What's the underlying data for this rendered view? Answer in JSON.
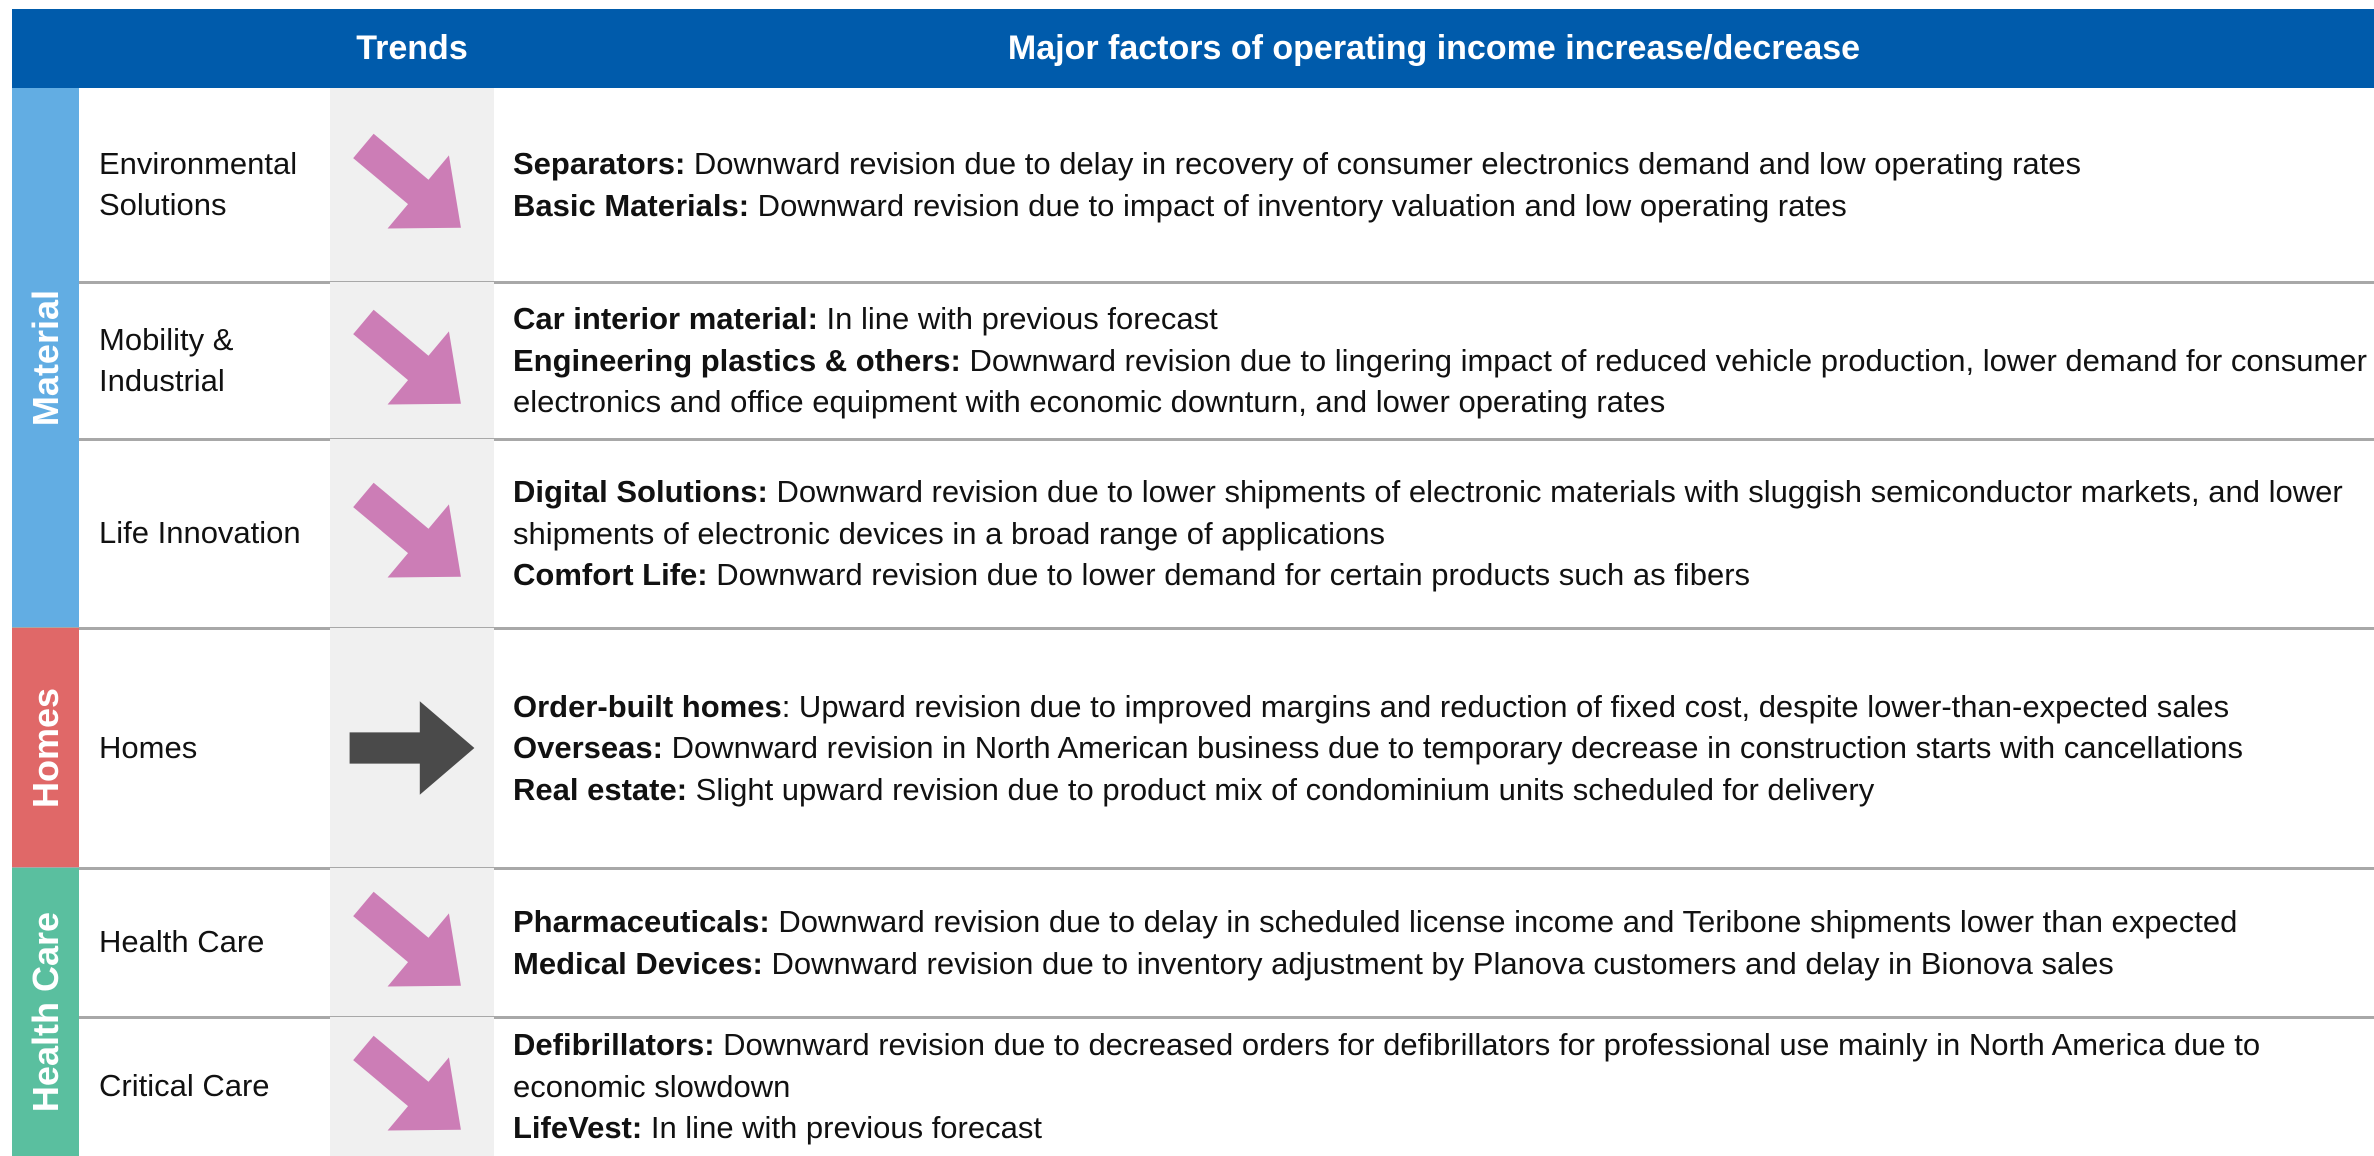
{
  "header": {
    "trends": "Trends",
    "factors": "Major factors of operating income increase/decrease"
  },
  "groups": [
    {
      "name": "Material",
      "color": "#62ade3",
      "rows": [
        {
          "segment": "Environmental Solutions",
          "trend": "down",
          "factors": [
            {
              "label": "Separators:",
              "text": " Downward revision due to delay in recovery of consumer electronics demand and low operating rates"
            },
            {
              "label": "Basic Materials:",
              "text": " Downward revision due to impact of inventory valuation and low operating rates"
            }
          ]
        },
        {
          "segment": "Mobility & Industrial",
          "trend": "down",
          "factors": [
            {
              "label": "Car interior material:",
              "text": " In line with previous forecast"
            },
            {
              "label": "Engineering plastics & others:",
              "text": " Downward revision due to lingering impact of reduced vehicle production, lower demand for consumer electronics and office equipment with economic downturn, and lower operating rates"
            }
          ]
        },
        {
          "segment": "Life Innovation",
          "trend": "down",
          "factors": [
            {
              "label": "Digital Solutions:",
              "text": " Downward revision due to lower shipments of electronic materials with sluggish semiconductor markets, and lower shipments of electronic devices in a broad range of applications"
            },
            {
              "label": "Comfort Life:",
              "text": " Downward revision due to lower demand for certain products such as fibers"
            }
          ]
        }
      ]
    },
    {
      "name": "Homes",
      "color": "#e06868",
      "rows": [
        {
          "segment": "Homes",
          "trend": "flat",
          "factors": [
            {
              "label": "Order-built homes",
              "text": ": Upward revision due to improved margins and reduction of fixed cost, despite lower-than-expected sales"
            },
            {
              "label": "Overseas:",
              "text": " Downward revision in North American business due to temporary decrease in construction starts with cancellations"
            },
            {
              "label": "Real estate:",
              "text": " Slight upward revision due to product mix of condominium units scheduled for delivery"
            }
          ]
        }
      ]
    },
    {
      "name": "Health Care",
      "color": "#5abf9f",
      "rows": [
        {
          "segment": "Health Care",
          "trend": "down",
          "factors": [
            {
              "label": "Pharmaceuticals:",
              "text": " Downward revision due to delay in scheduled license income and Teribone shipments lower than expected"
            },
            {
              "label": "Medical Devices:",
              "text": " Downward revision due to inventory adjustment by Planova customers and delay in Bionova sales"
            }
          ]
        },
        {
          "segment": "Critical Care",
          "trend": "down",
          "factors": [
            {
              "label": "Defibrillators:",
              "text": " Downward revision due to decreased orders for defibrillators for professional use mainly in North America due to economic slowdown"
            },
            {
              "label": "LifeVest:",
              "text": " In line with previous forecast"
            }
          ]
        }
      ]
    }
  ]
}
